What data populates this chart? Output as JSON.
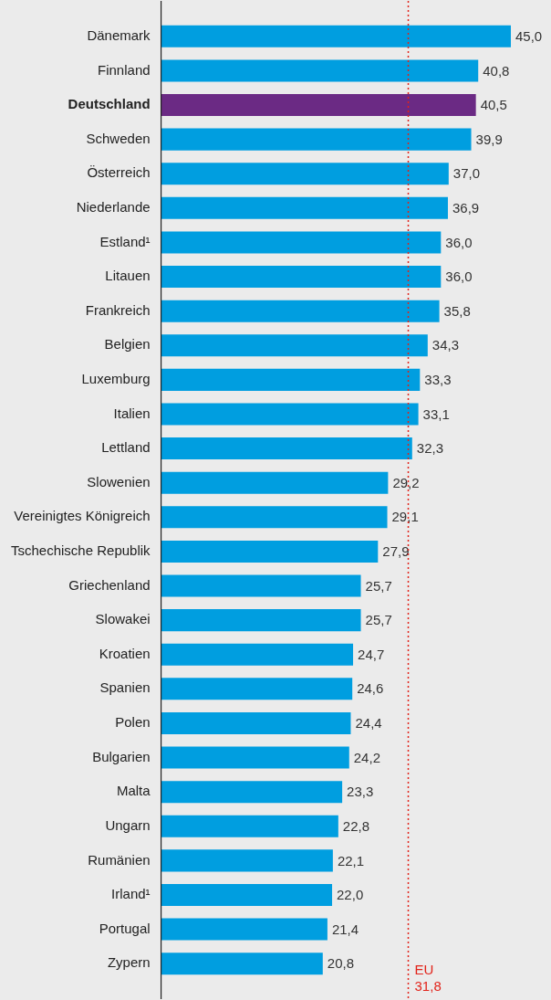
{
  "chart_data": {
    "type": "bar",
    "orientation": "horizontal",
    "categories": [
      "Dänemark",
      "Finnland",
      "Deutschland",
      "Schweden",
      "Österreich",
      "Niederlande",
      "Estland¹",
      "Litauen",
      "Frankreich",
      "Belgien",
      "Luxemburg",
      "Italien",
      "Lettland",
      "Slowenien",
      "Vereinigtes Königreich",
      "Tschechische Republik",
      "Griechenland",
      "Slowakei",
      "Kroatien",
      "Spanien",
      "Polen",
      "Bulgarien",
      "Malta",
      "Ungarn",
      "Rumänien",
      "Irland¹",
      "Portugal",
      "Zypern"
    ],
    "values": [
      45.0,
      40.8,
      40.5,
      39.9,
      37.0,
      36.9,
      36.0,
      36.0,
      35.8,
      34.3,
      33.3,
      33.1,
      32.3,
      29.2,
      29.1,
      27.9,
      25.7,
      25.7,
      24.7,
      24.6,
      24.4,
      24.2,
      23.3,
      22.8,
      22.1,
      22.0,
      21.4,
      20.8
    ],
    "colors": [
      "#009ee0",
      "#009ee0",
      "#6b2a84",
      "#009ee0",
      "#009ee0",
      "#009ee0",
      "#009ee0",
      "#009ee0",
      "#009ee0",
      "#009ee0",
      "#009ee0",
      "#009ee0",
      "#009ee0",
      "#009ee0",
      "#009ee0",
      "#009ee0",
      "#009ee0",
      "#009ee0",
      "#009ee0",
      "#009ee0",
      "#009ee0",
      "#009ee0",
      "#009ee0",
      "#009ee0",
      "#009ee0",
      "#009ee0",
      "#009ee0",
      "#009ee0"
    ],
    "value_labels": [
      "45,0",
      "40,8",
      "40,5",
      "39,9",
      "37,0",
      "36,9",
      "36,0",
      "36,0",
      "35,8",
      "34,3",
      "33,3",
      "33,1",
      "32,3",
      "29,2",
      "29,1",
      "27,9",
      "25,7",
      "25,7",
      "24,7",
      "24,6",
      "24,4",
      "24,2",
      "23,3",
      "22,8",
      "22,1",
      "22,0",
      "21,4",
      "20,8"
    ],
    "tick_labels": "y",
    "grid": false,
    "legend": false,
    "ref_lines": [
      {
        "axis": "x",
        "value": 31.8,
        "label": "EU 31,8",
        "color": "#e2231a",
        "line_style": "dotted"
      }
    ]
  }
}
